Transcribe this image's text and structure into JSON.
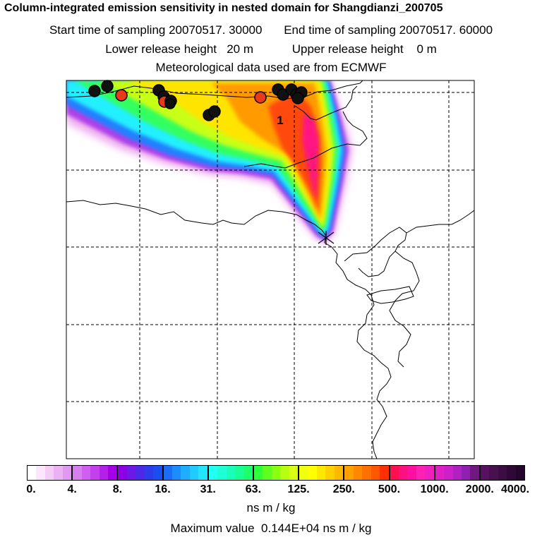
{
  "header": {
    "title": "Column-integrated emission sensitivity in nested domain for Shangdianzi_200705",
    "start_label": "Start time of sampling",
    "start_value": "20070517. 30000",
    "end_label": "End time of sampling",
    "end_value": "20070517. 60000",
    "lower_label": "Lower release height",
    "lower_value": "20 m",
    "upper_label": "Upper release height",
    "upper_value": "0 m",
    "met_line": "Meteorological data used are from ECMWF"
  },
  "map": {
    "cluster_label": "1",
    "receptor_symbol": "✕",
    "colors": {
      "black_dots": "#111111",
      "red_dots": "#e8391c",
      "coast": "#000000",
      "grid": "#000000"
    }
  },
  "colorbar": {
    "tick_labels": [
      "0.",
      "4.",
      "8.",
      "16.",
      "31.",
      "63.",
      "125.",
      "250.",
      "500.",
      "1000.",
      "2000.",
      "4000."
    ],
    "groups": [
      [
        "#ffffff",
        "#fbe7fb",
        "#f4cdf6",
        "#eab2f3",
        "#e099f0"
      ],
      [
        "#d87ff0",
        "#cf5fee",
        "#c340ec",
        "#b51fea",
        "#a600e8"
      ],
      [
        "#8d00e6",
        "#6e18e6",
        "#4a2ae6",
        "#2d3cea",
        "#1a4ef0"
      ],
      [
        "#1c6cf8",
        "#1d8cff",
        "#1faeff",
        "#20ccff",
        "#22e6ff"
      ],
      [
        "#22fff4",
        "#1effd6",
        "#1affb8",
        "#18ff96",
        "#1cff6c"
      ],
      [
        "#2eff3c",
        "#5cff1e",
        "#8cff10",
        "#b6ff10",
        "#d8ff14"
      ],
      [
        "#f0ff10",
        "#ffff00",
        "#ffe800",
        "#ffd000",
        "#ffb800"
      ],
      [
        "#ffa000",
        "#ff8800",
        "#ff7000",
        "#ff5800",
        "#ff3000"
      ],
      [
        "#ff1050",
        "#ff1080",
        "#ff10a0",
        "#ff20b4",
        "#f020c0"
      ],
      [
        "#e020c4",
        "#cc20c8",
        "#b020c0",
        "#9020b0",
        "#701880"
      ],
      [
        "#581060",
        "#48104e",
        "#3c0c42",
        "#300838",
        "#24062c"
      ]
    ],
    "units": "ns m / kg",
    "max_label": "Maximum value",
    "max_value": "0.144E+04",
    "max_units": "ns m / kg"
  }
}
